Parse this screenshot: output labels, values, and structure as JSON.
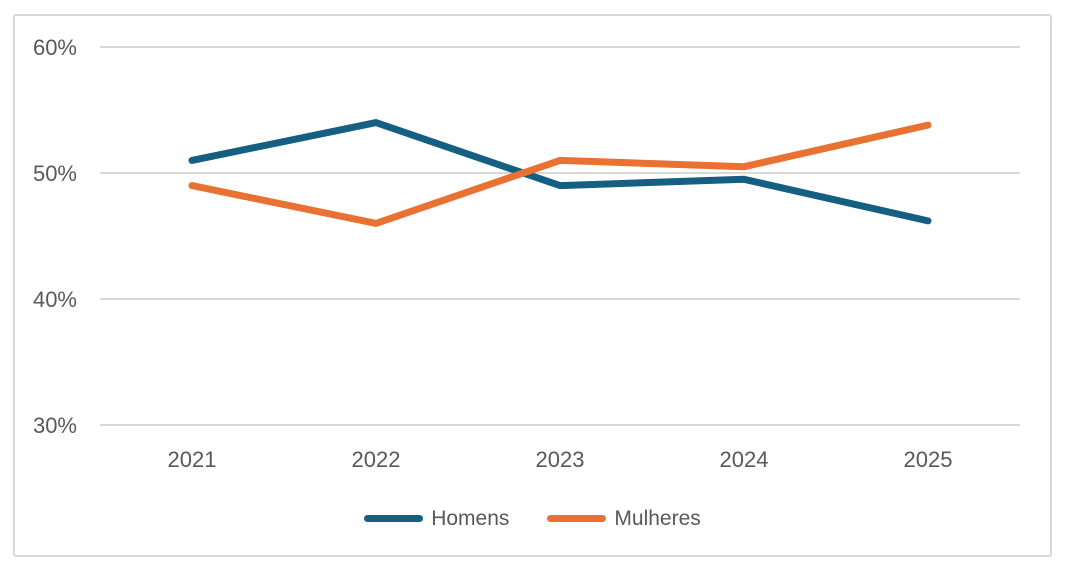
{
  "chart_data": {
    "type": "line",
    "categories": [
      "2021",
      "2022",
      "2023",
      "2024",
      "2025"
    ],
    "series": [
      {
        "name": "Homens",
        "color": "#156082",
        "values": [
          51,
          54,
          49,
          49.5,
          46.2
        ]
      },
      {
        "name": "Mulheres",
        "color": "#E97132",
        "values": [
          49,
          46,
          51,
          50.5,
          53.8
        ]
      }
    ],
    "ylim": [
      30,
      60
    ],
    "yticks": [
      60,
      50,
      40,
      30
    ],
    "ytick_labels": [
      "60%",
      "50%",
      "40%",
      "30%"
    ],
    "grid": "horizontal",
    "legend_position": "bottom",
    "colors": {
      "gridline": "#D9D9D9",
      "axis_text": "#595959",
      "frame_border": "#D9D9D9",
      "background": "#FFFFFF"
    }
  }
}
